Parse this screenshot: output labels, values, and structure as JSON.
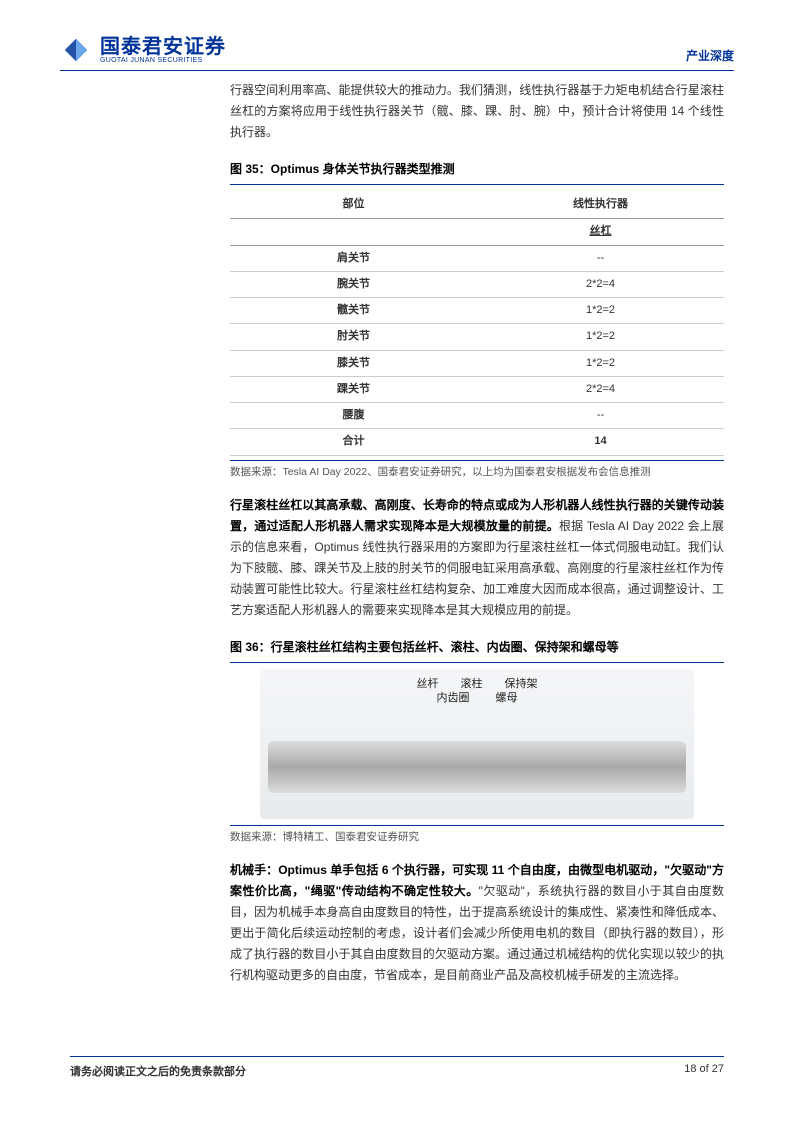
{
  "header": {
    "logo_cn": "国泰君安证券",
    "logo_en": "GUOTAI JUNAN SECURITIES",
    "doc_type": "产业深度",
    "brand_color": "#003399"
  },
  "intro": "行器空间利用率高、能提供较大的推动力。我们猜测，线性执行器基于力矩电机结合行星滚柱丝杠的方案将应用于线性执行器关节（髋、膝、踝、肘、腕）中，预计合计将使用 14 个线性执行器。",
  "table35": {
    "title": "图 35：Optimus 身体关节执行器类型推测",
    "col_part": "部位",
    "col_linear": "线性执行器",
    "subhead": "丝杠",
    "rows": [
      {
        "part": "肩关节",
        "val": "--"
      },
      {
        "part": "腕关节",
        "val": "2*2=4"
      },
      {
        "part": "髋关节",
        "val": "1*2=2"
      },
      {
        "part": "肘关节",
        "val": "1*2=2"
      },
      {
        "part": "膝关节",
        "val": "1*2=2"
      },
      {
        "part": "踝关节",
        "val": "2*2=4"
      },
      {
        "part": "腰腹",
        "val": "--"
      },
      {
        "part": "合计",
        "val": "14"
      }
    ],
    "source": "数据来源：Tesla AI Day 2022、国泰君安证券研究，以上均为国泰君安根据发布会信息推测"
  },
  "para2": {
    "bold": "行星滚柱丝杠以其高承载、高刚度、长寿命的特点或成为人形机器人线性执行器的关键传动装置，通过适配人形机器人需求实现降本是大规模放量的前提。",
    "rest": "根据 Tesla AI Day 2022 会上展示的信息来看，Optimus 线性执行器采用的方案即为行星滚柱丝杠一体式伺服电动缸。我们认为下肢髋、膝、踝关节及上肢的肘关节的伺服电缸采用高承载、高刚度的行星滚柱丝杠作为传动装置可能性比较大。行星滚柱丝杠结构复杂、加工难度大因而成本很高，通过调整设计、工艺方案适配人形机器人的需要来实现降本是其大规模应用的前提。"
  },
  "fig36": {
    "title": "图 36：行星滚柱丝杠结构主要包括丝杆、滚柱、内齿圈、保持架和螺母等",
    "labels_top": [
      "丝杆",
      "滚柱",
      "保持架"
    ],
    "labels_mid": [
      "内齿圈",
      "螺母"
    ],
    "source": "数据来源：博特精工、国泰君安证券研究"
  },
  "para3": {
    "bold": "机械手：Optimus 单手包括 6 个执行器，可实现 11 个自由度，由微型电机驱动，\"欠驱动\"方案性价比高，\"绳驱\"传动结构不确定性较大。",
    "rest": "\"欠驱动\"，系统执行器的数目小于其自由度数目，因为机械手本身高自由度数目的特性，出于提高系统设计的集成性、紧凑性和降低成本、更出于简化后续运动控制的考虑，设计者们会减少所使用电机的数目（即执行器的数目），形成了执行器的数目小于其自由度数目的欠驱动方案。通过通过机械结构的优化实现以较少的执行机构驱动更多的自由度，节省成本，是目前商业产品及高校机械手研发的主流选择。"
  },
  "footer": {
    "disclaimer": "请务必阅读正文之后的免责条款部分",
    "page": "18 of 27"
  }
}
